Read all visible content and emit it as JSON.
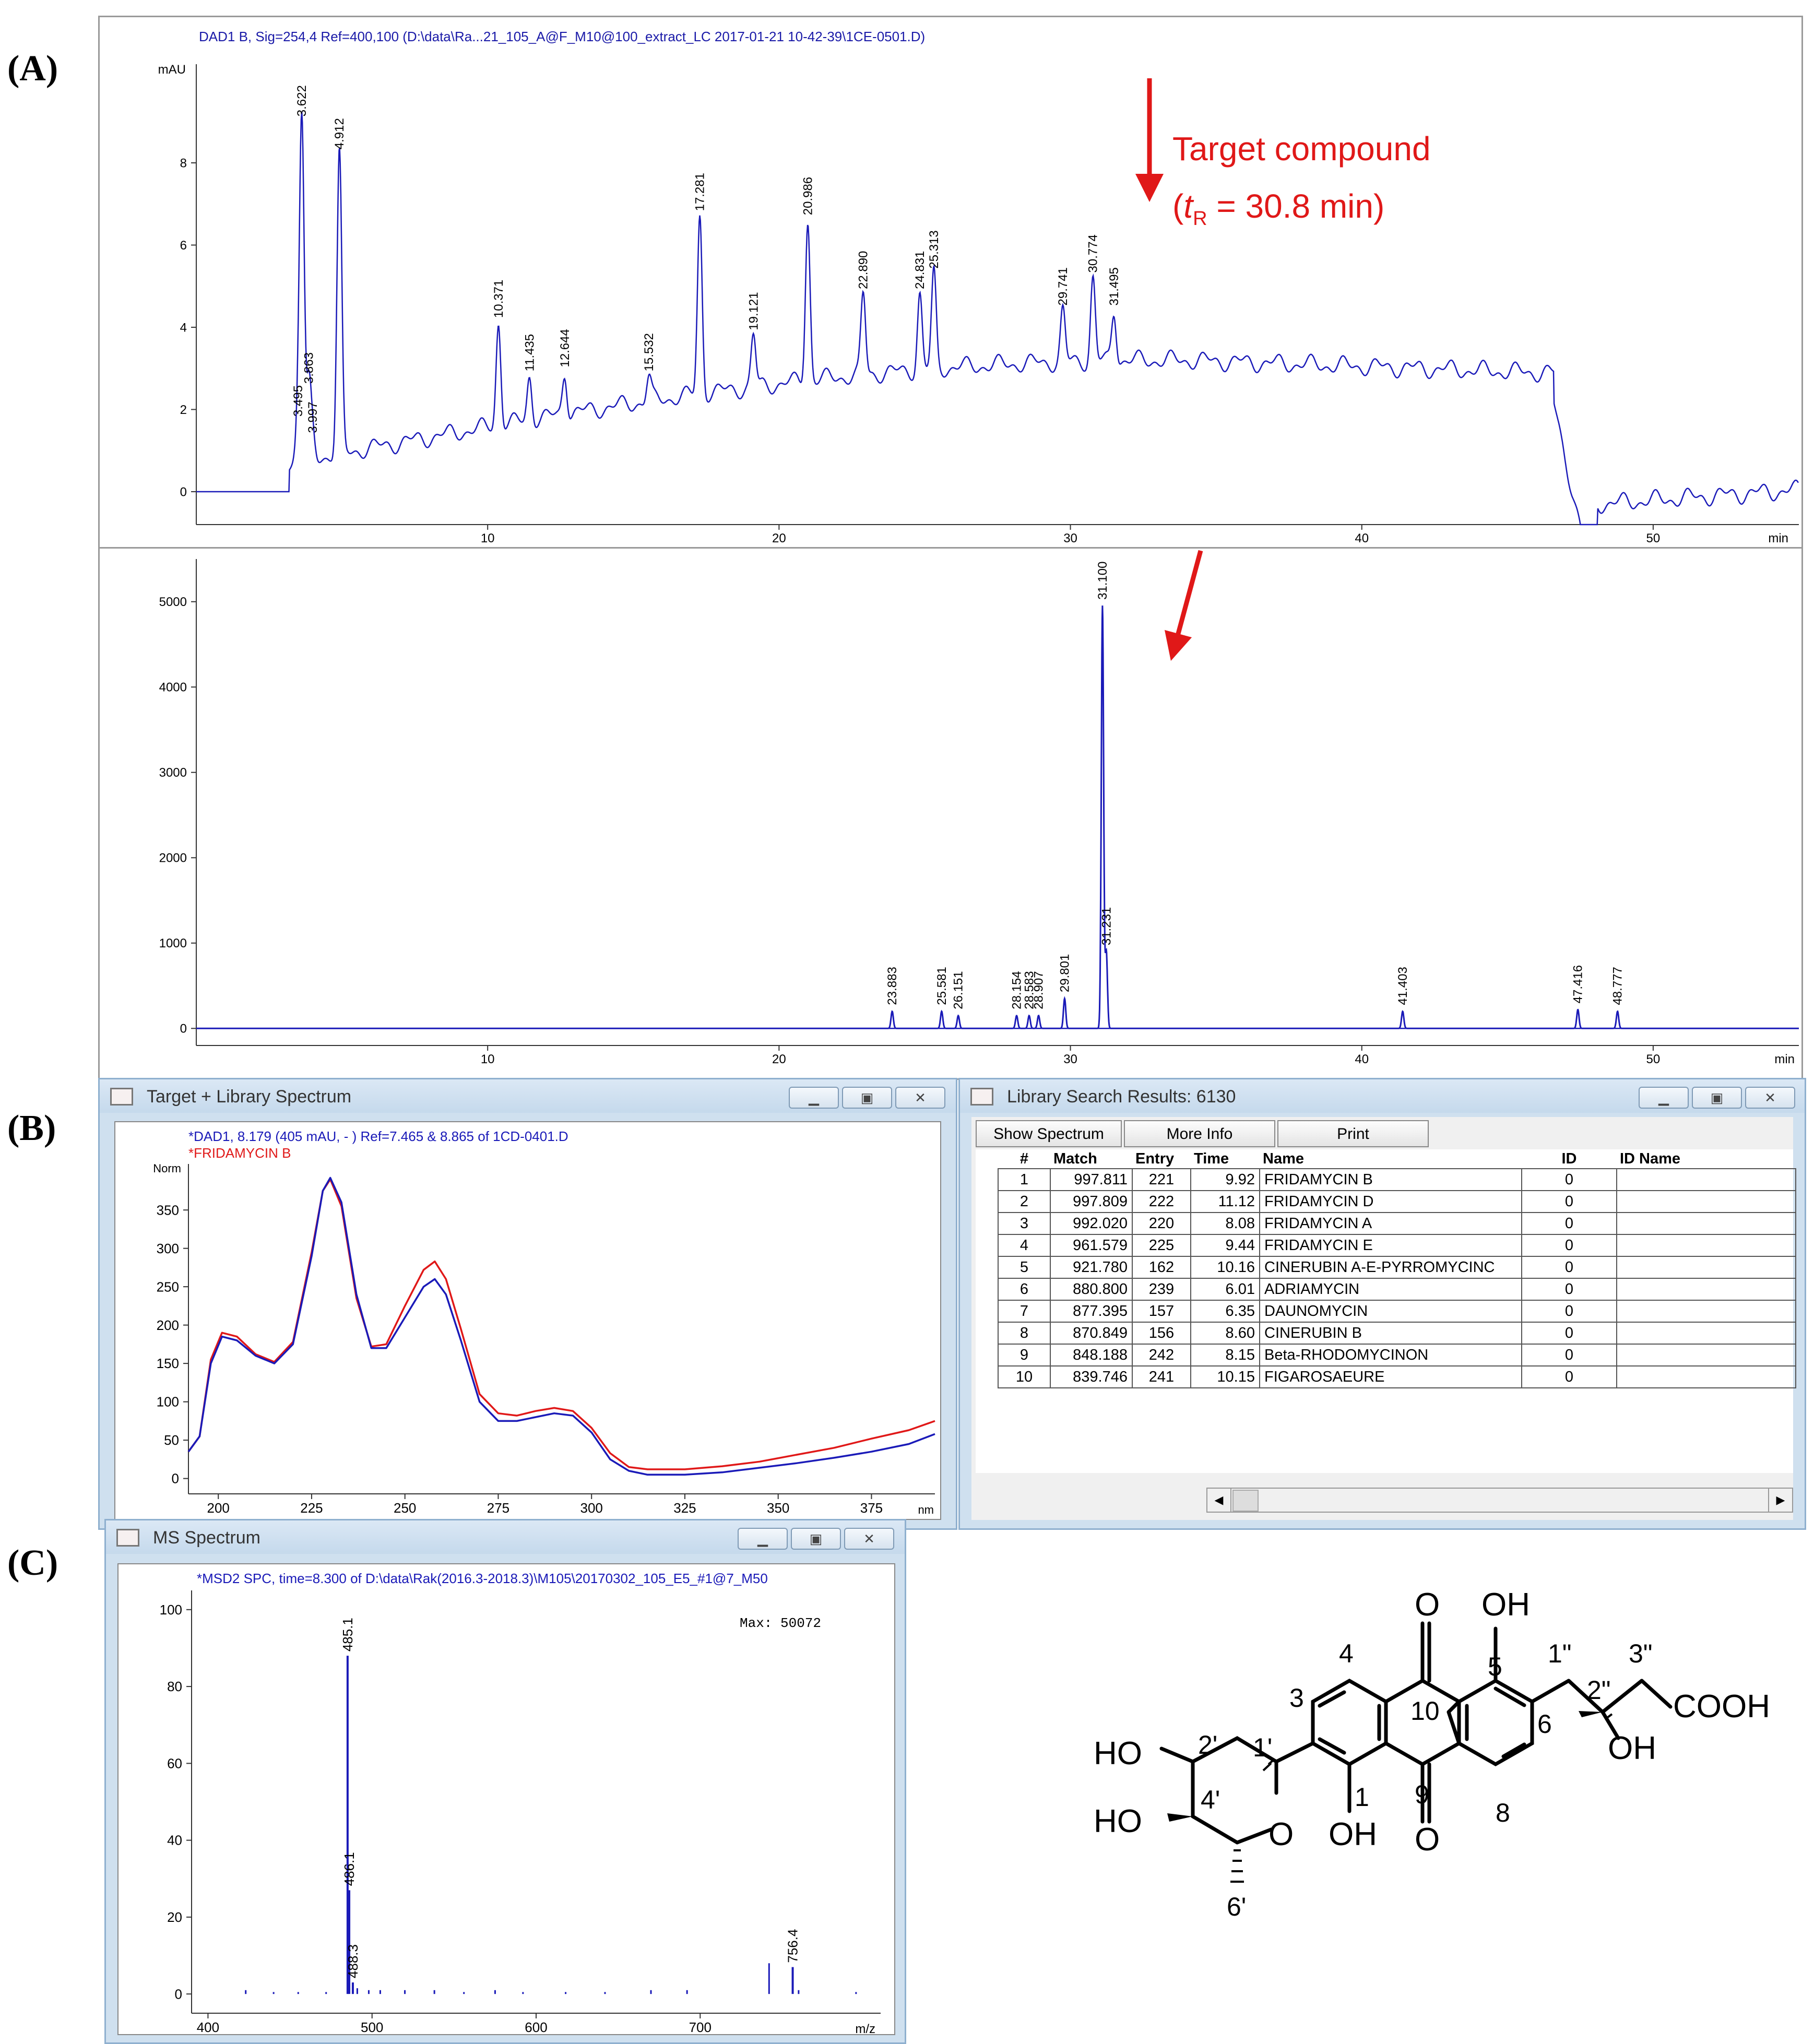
{
  "panel_labels": {
    "a": "(A)",
    "b": "(B)",
    "c": "(C)"
  },
  "chrom1": {
    "title": "DAD1 B, Sig=254,4 Ref=400,100 (D:\\data\\Ra...21_105_A@F_M10@100_extract_LC 2017-01-21 10-42-39\\1CE-0501.D)",
    "y_unit": "mAU",
    "x_unit": "min",
    "annotation": {
      "line1": "Target  compound",
      "t": "t",
      "sub": "R",
      "rest": "  =  30.8  min)",
      "open": "("
    }
  },
  "chrom2": {
    "x_unit": "min"
  },
  "spec_window": {
    "title": "Target + Library Spectrum",
    "line1": "*DAD1, 8.179 (405 mAU, - ) Ref=7.465 & 8.865 of 1CD-0401.D",
    "line2": "*FRIDAMYCIN B",
    "y_unit": "Norm",
    "x_unit": "nm"
  },
  "lib_window": {
    "title": "Library Search Results: 6130",
    "buttons": [
      "Show Spectrum",
      "More Info",
      "Print"
    ],
    "headers": [
      "#",
      "Match",
      "Entry",
      "Time",
      "Name",
      "ID",
      "ID Name"
    ],
    "rows": [
      [
        "1",
        "997.811",
        "221",
        "9.92",
        "FRIDAMYCIN B",
        "0",
        ""
      ],
      [
        "2",
        "997.809",
        "222",
        "11.12",
        "FRIDAMYCIN D",
        "0",
        ""
      ],
      [
        "3",
        "992.020",
        "220",
        "8.08",
        "FRIDAMYCIN A",
        "0",
        ""
      ],
      [
        "4",
        "961.579",
        "225",
        "9.44",
        "FRIDAMYCIN E",
        "0",
        ""
      ],
      [
        "5",
        "921.780",
        "162",
        "10.16",
        "CINERUBIN A-E-PYRROMYCINC",
        "0",
        ""
      ],
      [
        "6",
        "880.800",
        "239",
        "6.01",
        "ADRIAMYCIN",
        "0",
        ""
      ],
      [
        "7",
        "877.395",
        "157",
        "6.35",
        "DAUNOMYCIN",
        "0",
        ""
      ],
      [
        "8",
        "870.849",
        "156",
        "8.60",
        "CINERUBIN B",
        "0",
        ""
      ],
      [
        "9",
        "848.188",
        "242",
        "8.15",
        "Beta-RHODOMYCINON",
        "0",
        ""
      ],
      [
        "10",
        "839.746",
        "241",
        "10.15",
        "FIGAROSAEURE",
        "0",
        ""
      ]
    ]
  },
  "ms_window": {
    "title": "MS Spectrum",
    "line1": "*MSD2 SPC, time=8.300 of D:\\data\\Rak(2016.3-2018.3)\\M105\\20170302_105_E5_#1@7_M50",
    "max_label": "Max:  50072",
    "x_unit": "m/z"
  },
  "structure": {
    "labels": [
      "O",
      "OH",
      "1\"",
      "3\"",
      "4",
      "5",
      "2\"",
      "COOH",
      "3",
      "10",
      "6",
      "OH",
      "HO",
      "2'",
      "1'",
      "9",
      "8",
      "1",
      "HO",
      "4'",
      "O",
      "OH",
      "O",
      "6'"
    ]
  },
  "chart_data": [
    {
      "type": "line",
      "id": "chrom1",
      "xlabel": "min",
      "ylabel": "mAU",
      "xlim": [
        0,
        55
      ],
      "ylim": [
        -0.8,
        10.4
      ],
      "x_ticks": [
        10,
        20,
        30,
        40,
        50
      ],
      "y_ticks": [
        0,
        2,
        4,
        6,
        8
      ],
      "peaks": [
        {
          "label": "3.495",
          "x": 3.495,
          "y": 1.7
        },
        {
          "label": "3.622",
          "x": 3.622,
          "y": 9.0
        },
        {
          "label": "3.863",
          "x": 3.863,
          "y": 2.5
        },
        {
          "label": "3.997",
          "x": 3.997,
          "y": 1.3
        },
        {
          "label": "4.912",
          "x": 4.912,
          "y": 8.2
        },
        {
          "label": "10.371",
          "x": 10.371,
          "y": 4.1
        },
        {
          "label": "11.435",
          "x": 11.435,
          "y": 2.8
        },
        {
          "label": "12.644",
          "x": 12.644,
          "y": 2.9
        },
        {
          "label": "15.532",
          "x": 15.532,
          "y": 2.8
        },
        {
          "label": "17.281",
          "x": 17.281,
          "y": 6.7
        },
        {
          "label": "19.121",
          "x": 19.121,
          "y": 3.8
        },
        {
          "label": "20.986",
          "x": 20.986,
          "y": 6.6
        },
        {
          "label": "22.890",
          "x": 22.89,
          "y": 4.8
        },
        {
          "label": "24.831",
          "x": 24.831,
          "y": 4.8
        },
        {
          "label": "25.313",
          "x": 25.313,
          "y": 5.3
        },
        {
          "label": "29.741",
          "x": 29.741,
          "y": 4.4
        },
        {
          "label": "30.774",
          "x": 30.774,
          "y": 5.2
        },
        {
          "label": "31.495",
          "x": 31.495,
          "y": 4.4
        }
      ]
    },
    {
      "type": "line",
      "id": "chrom2",
      "xlabel": "min",
      "ylabel": "",
      "xlim": [
        0,
        55
      ],
      "ylim": [
        -200,
        5500
      ],
      "x_ticks": [
        10,
        20,
        30,
        40,
        50
      ],
      "y_ticks": [
        0,
        1000,
        2000,
        3000,
        4000,
        5000
      ],
      "peaks": [
        {
          "label": "23.883",
          "x": 23.883,
          "y": 200
        },
        {
          "label": "25.581",
          "x": 25.581,
          "y": 200
        },
        {
          "label": "26.151",
          "x": 26.151,
          "y": 150
        },
        {
          "label": "28.154",
          "x": 28.154,
          "y": 150
        },
        {
          "label": "28.583",
          "x": 28.583,
          "y": 150
        },
        {
          "label": "28.907",
          "x": 28.907,
          "y": 150
        },
        {
          "label": "29.801",
          "x": 29.801,
          "y": 350
        },
        {
          "label": "31.100",
          "x": 31.1,
          "y": 4950
        },
        {
          "label": "31.231",
          "x": 31.231,
          "y": 900
        },
        {
          "label": "41.403",
          "x": 41.403,
          "y": 200
        },
        {
          "label": "47.416",
          "x": 47.416,
          "y": 220
        },
        {
          "label": "48.777",
          "x": 48.777,
          "y": 200
        }
      ]
    },
    {
      "type": "line",
      "id": "uv",
      "xlabel": "nm",
      "ylabel": "Norm",
      "xlim": [
        192,
        392
      ],
      "ylim": [
        -20,
        410
      ],
      "x_ticks": [
        200,
        225,
        250,
        275,
        300,
        325,
        350,
        375
      ],
      "y_ticks": [
        0,
        50,
        100,
        150,
        200,
        250,
        300,
        350
      ],
      "series": [
        {
          "name": "*DAD1, 8.179 (405 mAU, - ) Ref=7.465 & 8.865 of 1CD-0401.D",
          "color": "#1a1ab8",
          "x": [
            192,
            195,
            198,
            201,
            205,
            210,
            215,
            220,
            225,
            228,
            230,
            233,
            237,
            241,
            245,
            250,
            255,
            258,
            261,
            265,
            270,
            275,
            280,
            285,
            290,
            295,
            300,
            305,
            310,
            315,
            325,
            335,
            345,
            355,
            365,
            375,
            385,
            392
          ],
          "y": [
            35,
            55,
            150,
            185,
            180,
            160,
            150,
            175,
            290,
            375,
            392,
            360,
            240,
            170,
            170,
            210,
            250,
            260,
            240,
            180,
            100,
            75,
            75,
            80,
            85,
            82,
            60,
            25,
            10,
            5,
            5,
            8,
            14,
            20,
            27,
            35,
            45,
            58
          ]
        },
        {
          "name": "*FRIDAMYCIN B",
          "color": "#e01818",
          "x": [
            192,
            195,
            198,
            201,
            205,
            210,
            215,
            220,
            225,
            228,
            230,
            233,
            237,
            241,
            245,
            250,
            255,
            258,
            261,
            265,
            270,
            275,
            280,
            285,
            290,
            295,
            300,
            305,
            310,
            315,
            325,
            335,
            345,
            355,
            365,
            375,
            385,
            392
          ],
          "y": [
            35,
            55,
            155,
            190,
            185,
            162,
            152,
            178,
            295,
            375,
            390,
            355,
            235,
            172,
            175,
            225,
            272,
            283,
            260,
            195,
            110,
            85,
            82,
            88,
            92,
            88,
            66,
            33,
            15,
            12,
            12,
            16,
            22,
            31,
            40,
            52,
            63,
            75
          ]
        }
      ]
    },
    {
      "type": "bar",
      "id": "ms",
      "xlabel": "m/z",
      "ylabel": "",
      "xlim": [
        390,
        810
      ],
      "ylim": [
        -5,
        105
      ],
      "x_ticks": [
        400,
        500,
        600,
        700
      ],
      "y_ticks": [
        0,
        20,
        40,
        60,
        80,
        100
      ],
      "peaks": [
        {
          "label": "485.1",
          "x": 485.1,
          "y": 88
        },
        {
          "label": "486.1",
          "x": 486.1,
          "y": 27
        },
        {
          "label": "488.3",
          "x": 488.3,
          "y": 3
        },
        {
          "label": "756.4",
          "x": 756.4,
          "y": 7
        }
      ],
      "minor_peaks": [
        {
          "x": 423,
          "y": 1
        },
        {
          "x": 440,
          "y": 0.5
        },
        {
          "x": 455,
          "y": 0.5
        },
        {
          "x": 472,
          "y": 0.5
        },
        {
          "x": 491,
          "y": 1.5
        },
        {
          "x": 498,
          "y": 1
        },
        {
          "x": 505,
          "y": 1
        },
        {
          "x": 520,
          "y": 1
        },
        {
          "x": 538,
          "y": 1
        },
        {
          "x": 556,
          "y": 0.5
        },
        {
          "x": 575,
          "y": 1
        },
        {
          "x": 592,
          "y": 0.5
        },
        {
          "x": 618,
          "y": 0.5
        },
        {
          "x": 642,
          "y": 0.5
        },
        {
          "x": 670,
          "y": 1
        },
        {
          "x": 692,
          "y": 1
        },
        {
          "x": 742,
          "y": 8
        },
        {
          "x": 760,
          "y": 1
        },
        {
          "x": 795,
          "y": 0.5
        }
      ]
    }
  ]
}
